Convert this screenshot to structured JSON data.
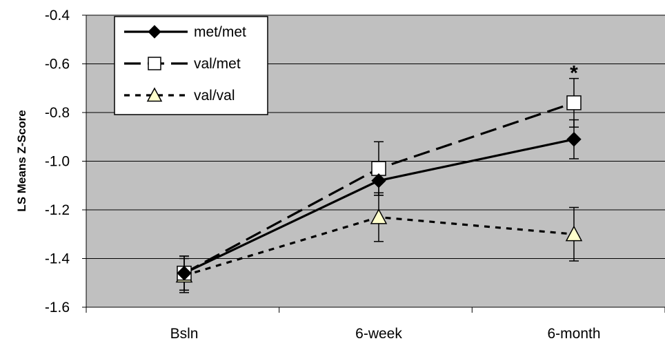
{
  "chart_data": {
    "type": "line",
    "title": "",
    "xlabel": "",
    "ylabel": "LS Means  Z-Score",
    "categories": [
      "Bsln",
      "6-week",
      "6-month"
    ],
    "ylim": [
      -1.6,
      -0.4
    ],
    "yticks": [
      -1.6,
      -1.4,
      -1.2,
      -1.0,
      -0.8,
      -0.6,
      -0.4
    ],
    "ytick_labels": [
      "-1.6",
      "-1.4",
      "-1.2",
      "-1.0",
      "-0.8",
      "-0.6",
      "-0.4"
    ],
    "grid": true,
    "plot_background": "#c0c0c0",
    "legend_placement": "top-left",
    "series": [
      {
        "name": "met/met",
        "values": [
          -1.46,
          -1.08,
          -0.91
        ],
        "error": [
          0.07,
          0.06,
          0.08
        ],
        "marker": "diamond",
        "line_style": "solid",
        "marker_color": "#000000"
      },
      {
        "name": "val/met",
        "values": [
          -1.46,
          -1.03,
          -0.76
        ],
        "error": [
          0.07,
          0.11,
          0.1
        ],
        "marker": "square",
        "line_style": "dashed",
        "marker_color": "#ffffff"
      },
      {
        "name": "val/val",
        "values": [
          -1.47,
          -1.23,
          -1.3
        ],
        "error": [
          0.07,
          0.1,
          0.11
        ],
        "marker": "triangle",
        "line_style": "dotted",
        "marker_color": "#ffffcc"
      }
    ],
    "annotations": [
      {
        "text": "*",
        "category": "6-month",
        "y": -0.62
      }
    ]
  }
}
